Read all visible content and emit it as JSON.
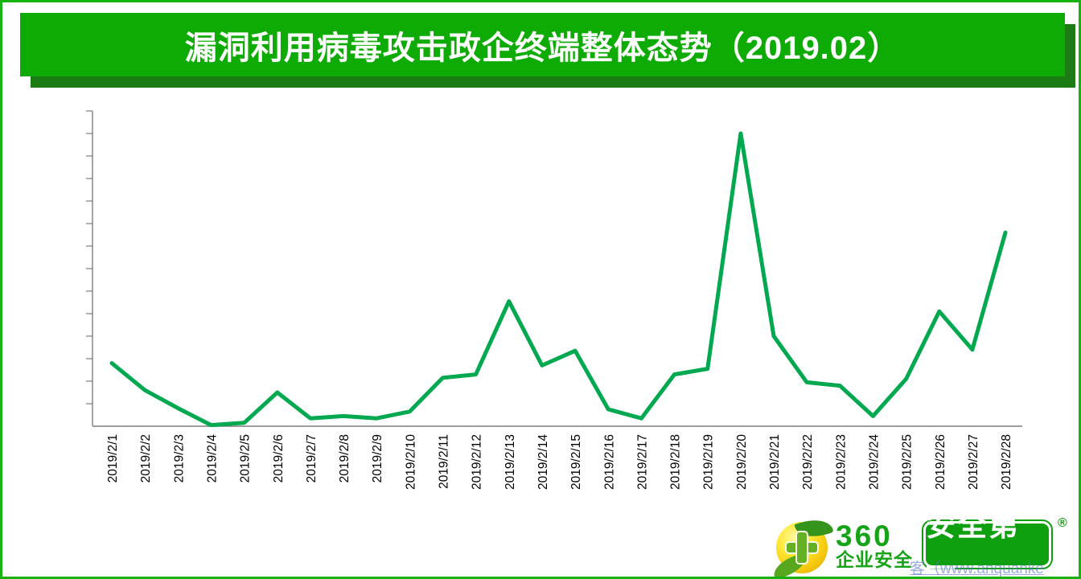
{
  "page": {
    "border_color": "#16b30e",
    "background": "#ffffff"
  },
  "header": {
    "title": "漏洞利用病毒攻击政企终端整体态势（2019.02）",
    "banner_color": "#0dab04",
    "shadow_color": "#1a7c12",
    "text_color": "#ffffff"
  },
  "chart_data": {
    "type": "line",
    "title": "漏洞利用病毒攻击政企终端整体态势（2019.02）",
    "x": [
      "2019/2/1",
      "2019/2/2",
      "2019/2/3",
      "2019/2/4",
      "2019/2/5",
      "2019/2/6",
      "2019/2/7",
      "2019/2/8",
      "2019/2/9",
      "2019/2/10",
      "2019/2/11",
      "2019/2/12",
      "2019/2/13",
      "2019/2/14",
      "2019/2/15",
      "2019/2/16",
      "2019/2/17",
      "2019/2/18",
      "2019/2/19",
      "2019/2/20",
      "2019/2/21",
      "2019/2/22",
      "2019/2/23",
      "2019/2/24",
      "2019/2/25",
      "2019/2/26",
      "2019/2/27",
      "2019/2/28"
    ],
    "values": [
      2.8,
      1.6,
      0.8,
      0.05,
      0.15,
      1.5,
      0.35,
      0.45,
      0.35,
      0.65,
      2.15,
      2.3,
      5.55,
      2.7,
      3.35,
      0.75,
      0.35,
      2.3,
      2.55,
      13.0,
      4.0,
      1.95,
      1.8,
      0.45,
      2.1,
      5.1,
      3.4,
      8.6
    ],
    "xlabel": "",
    "ylabel": "",
    "y_axis_unlabeled": true,
    "y_tick_count": 14,
    "ylim": [
      0,
      14
    ],
    "grid": "off",
    "legend": "none",
    "x_label_rotation": -90,
    "line_color": "#00a94f",
    "axis_color": "#7f7f7f",
    "label_color": "#000000"
  },
  "footer": {
    "logo_360": {
      "brand": "360",
      "subtitle": "企业安全"
    },
    "badge": {
      "text": "安全第一",
      "registered_mark": "®",
      "color": "#0fa00f"
    },
    "watermark": "客（www.anquanke"
  }
}
